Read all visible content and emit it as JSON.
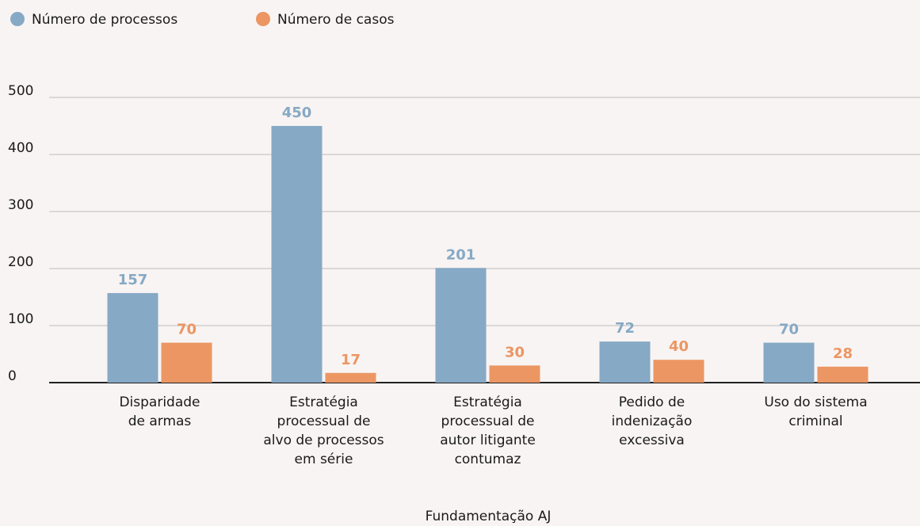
{
  "chart_data": {
    "type": "bar",
    "x_label": "Fundamentação AJ",
    "categories": [
      [
        "Disparidade",
        "de armas"
      ],
      [
        "Estratégia",
        "processual de",
        "alvo de processos",
        "em série"
      ],
      [
        "Estratégia",
        "processual de",
        "autor litigante",
        "contumaz"
      ],
      [
        "Pedido de",
        "indenização",
        "excessiva"
      ],
      [
        "Uso do sistema",
        "criminal"
      ]
    ],
    "series": [
      {
        "name": "Número de processos",
        "color": "#86a9c5",
        "values": [
          157,
          450,
          201,
          72,
          70
        ]
      },
      {
        "name": "Número de casos",
        "color": "#eb9663",
        "values": [
          70,
          17,
          30,
          40,
          28
        ]
      }
    ],
    "ylim": [
      0,
      500
    ],
    "yticks": [
      0,
      100,
      200,
      300,
      400,
      500
    ],
    "grid": true,
    "legend": "top-left"
  }
}
